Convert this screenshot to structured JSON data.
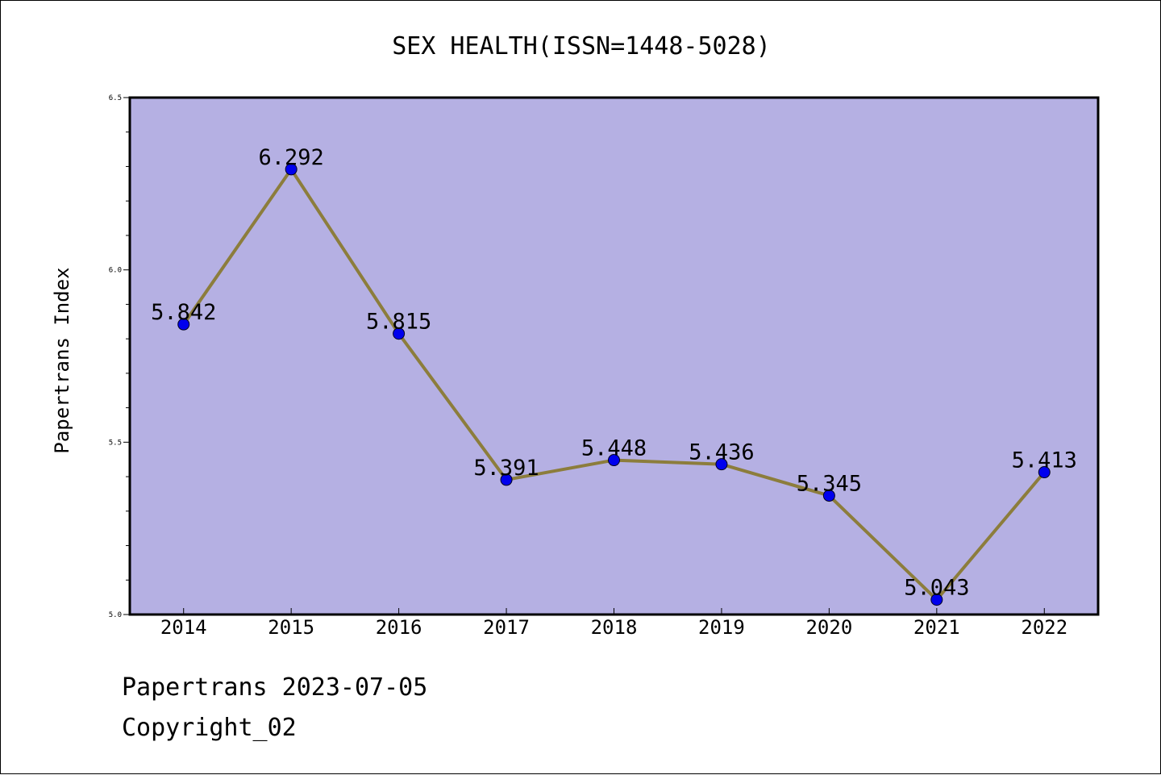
{
  "chart_data": {
    "type": "line",
    "title": "SEX HEALTH(ISSN=1448-5028)",
    "xlabel": "",
    "ylabel": "Papertrans Index",
    "categories": [
      "2014",
      "2015",
      "2016",
      "2017",
      "2018",
      "2019",
      "2020",
      "2021",
      "2022"
    ],
    "values": [
      5.842,
      6.292,
      5.815,
      5.391,
      5.448,
      5.436,
      5.345,
      5.043,
      5.413
    ],
    "data_labels": [
      "5.842",
      "6.292",
      "5.815",
      "5.391",
      "5.448",
      "5.436",
      "5.345",
      "5.043",
      "5.413"
    ],
    "ylim": [
      5.0,
      6.5
    ],
    "yticks": [
      "5.0",
      "5.5",
      "6.0",
      "6.5"
    ],
    "grid": false,
    "colors": {
      "plot_background": "#b5b0e3",
      "line": "#8c7d3c",
      "marker": "#0000ee"
    }
  },
  "footer": {
    "date_line": "Papertrans 2023-07-05",
    "copyright_line": "Copyright_02"
  }
}
